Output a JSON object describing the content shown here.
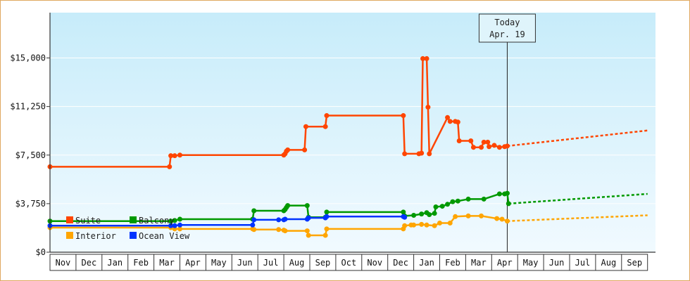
{
  "chart_data": {
    "type": "line",
    "title": "",
    "xlabel": "",
    "ylabel": "",
    "ylim": [
      0,
      18500
    ],
    "yticks": [
      {
        "value": 0,
        "label": "$0"
      },
      {
        "value": 3750,
        "label": "$3,750"
      },
      {
        "value": 7500,
        "label": "$7,500"
      },
      {
        "value": 11250,
        "label": "$11,250"
      },
      {
        "value": 15000,
        "label": "$15,000"
      }
    ],
    "months": [
      "Nov",
      "Dec",
      "Jan",
      "Feb",
      "Mar",
      "Apr",
      "May",
      "Jun",
      "Jul",
      "Aug",
      "Sep",
      "Oct",
      "Nov",
      "Dec",
      "Jan",
      "Feb",
      "Mar",
      "Apr",
      "May",
      "Jun",
      "Jul",
      "Aug",
      "Sep"
    ],
    "grid": true,
    "legend_position": "bottom-left",
    "today": {
      "line1": "Today",
      "line2": "Apr. 19",
      "month_index": 17.6
    },
    "series": [
      {
        "name": "Suite",
        "color": "#ff4500",
        "points": [
          [
            0.0,
            6600
          ],
          [
            4.6,
            6600
          ],
          [
            4.65,
            7450
          ],
          [
            4.8,
            7450
          ],
          [
            5.0,
            7500
          ],
          [
            9.0,
            7500
          ],
          [
            9.05,
            7600
          ],
          [
            9.1,
            7800
          ],
          [
            9.15,
            7900
          ],
          [
            9.8,
            7900
          ],
          [
            9.85,
            9700
          ],
          [
            10.6,
            9700
          ],
          [
            10.65,
            10550
          ],
          [
            13.6,
            10550
          ],
          [
            13.65,
            7600
          ],
          [
            14.2,
            7600
          ],
          [
            14.3,
            7650
          ],
          [
            14.35,
            14950
          ],
          [
            14.5,
            14950
          ],
          [
            14.55,
            11200
          ],
          [
            14.6,
            7600
          ],
          [
            15.3,
            10400
          ],
          [
            15.4,
            10100
          ],
          [
            15.6,
            10100
          ],
          [
            15.7,
            10050
          ],
          [
            15.75,
            8600
          ],
          [
            16.2,
            8600
          ],
          [
            16.3,
            8100
          ],
          [
            16.6,
            8100
          ],
          [
            16.7,
            8500
          ],
          [
            16.85,
            8500
          ],
          [
            16.9,
            8150
          ],
          [
            17.1,
            8250
          ],
          [
            17.3,
            8100
          ],
          [
            17.5,
            8150
          ],
          [
            17.6,
            8200
          ]
        ],
        "forecast": [
          [
            17.6,
            8200
          ],
          [
            23.0,
            9400
          ]
        ]
      },
      {
        "name": "Balcony",
        "color": "#009900",
        "points": [
          [
            0.0,
            2400
          ],
          [
            4.65,
            2400
          ],
          [
            4.8,
            2450
          ],
          [
            5.0,
            2550
          ],
          [
            7.8,
            2550
          ],
          [
            7.85,
            3200
          ],
          [
            9.0,
            3200
          ],
          [
            9.05,
            3300
          ],
          [
            9.1,
            3450
          ],
          [
            9.15,
            3600
          ],
          [
            9.9,
            3600
          ],
          [
            9.95,
            2700
          ],
          [
            10.6,
            2700
          ],
          [
            10.65,
            3100
          ],
          [
            13.6,
            3100
          ],
          [
            13.65,
            2800
          ],
          [
            14.0,
            2850
          ],
          [
            14.3,
            2950
          ],
          [
            14.5,
            3050
          ],
          [
            14.6,
            2900
          ],
          [
            14.8,
            3000
          ],
          [
            14.85,
            3500
          ],
          [
            15.1,
            3550
          ],
          [
            15.3,
            3700
          ],
          [
            15.5,
            3900
          ],
          [
            15.7,
            3950
          ],
          [
            16.1,
            4100
          ],
          [
            16.7,
            4100
          ],
          [
            17.3,
            4500
          ],
          [
            17.5,
            4500
          ],
          [
            17.6,
            4550
          ],
          [
            17.65,
            3750
          ]
        ],
        "forecast": [
          [
            17.65,
            3750
          ],
          [
            23.0,
            4500
          ]
        ]
      },
      {
        "name": "Interior",
        "color": "#ffa500",
        "points": [
          [
            0.0,
            1900
          ],
          [
            4.65,
            1900
          ],
          [
            4.8,
            1800
          ],
          [
            5.0,
            1800
          ],
          [
            7.8,
            1800
          ],
          [
            7.85,
            1750
          ],
          [
            8.8,
            1750
          ],
          [
            9.0,
            1700
          ],
          [
            9.05,
            1650
          ],
          [
            9.9,
            1650
          ],
          [
            9.95,
            1300
          ],
          [
            10.6,
            1300
          ],
          [
            10.65,
            1800
          ],
          [
            13.6,
            1800
          ],
          [
            13.65,
            2050
          ],
          [
            13.9,
            2100
          ],
          [
            14.0,
            2100
          ],
          [
            14.3,
            2150
          ],
          [
            14.5,
            2100
          ],
          [
            14.8,
            2050
          ],
          [
            15.0,
            2250
          ],
          [
            15.4,
            2250
          ],
          [
            15.6,
            2750
          ],
          [
            16.1,
            2800
          ],
          [
            16.6,
            2800
          ],
          [
            17.2,
            2600
          ],
          [
            17.4,
            2550
          ],
          [
            17.6,
            2400
          ]
        ],
        "forecast": [
          [
            17.6,
            2400
          ],
          [
            23.0,
            2850
          ]
        ]
      },
      {
        "name": "Ocean View",
        "color": "#0033ff",
        "points": [
          [
            0.0,
            2050
          ],
          [
            4.65,
            2050
          ],
          [
            4.8,
            2050
          ],
          [
            5.0,
            2100
          ],
          [
            7.8,
            2100
          ],
          [
            7.85,
            2500
          ],
          [
            8.8,
            2500
          ],
          [
            9.0,
            2500
          ],
          [
            9.05,
            2550
          ],
          [
            9.9,
            2550
          ],
          [
            9.95,
            2650
          ],
          [
            10.6,
            2650
          ],
          [
            10.65,
            2750
          ],
          [
            13.6,
            2750
          ],
          [
            13.65,
            2700
          ]
        ]
      }
    ]
  }
}
